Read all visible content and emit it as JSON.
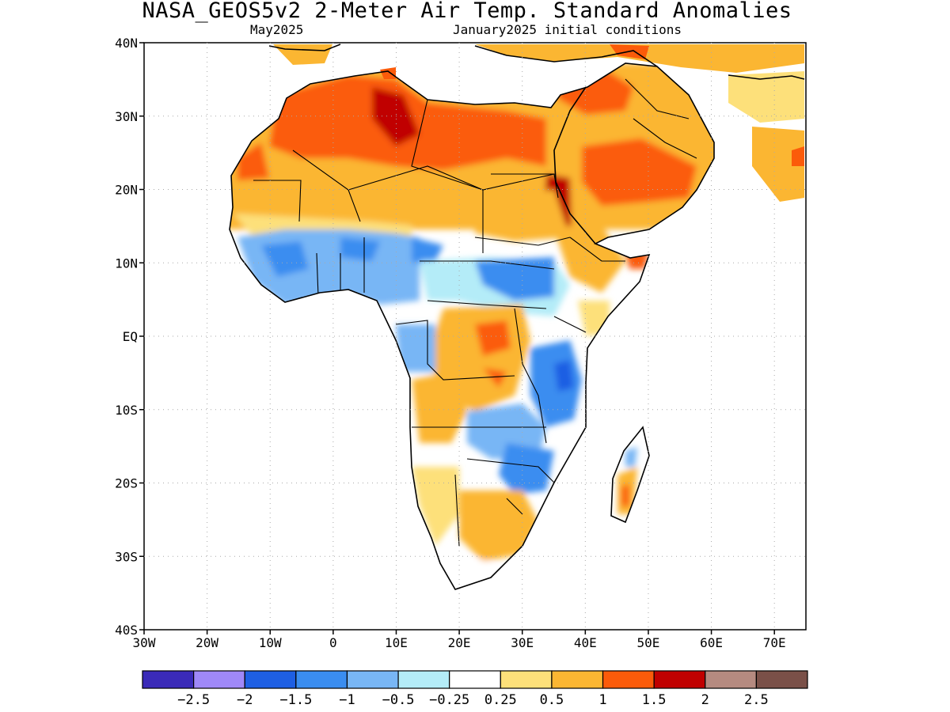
{
  "title": "NASA_GEOS5v2 2-Meter Air Temp. Standard Anomalies",
  "subtitle_left": "May2025",
  "subtitle_right": "January2025 initial conditions",
  "axes": {
    "lat_labels": [
      "40N",
      "30N",
      "20N",
      "10N",
      "EQ",
      "10S",
      "20S",
      "30S",
      "40S"
    ],
    "lon_labels": [
      "30W",
      "20W",
      "10W",
      "0",
      "10E",
      "20E",
      "30E",
      "40E",
      "50E",
      "60E",
      "70E"
    ]
  },
  "colorbar": {
    "colors": [
      "#3a2ab8",
      "#9f88f8",
      "#1e5fe3",
      "#3a8df0",
      "#78b6f5",
      "#b4ecf8",
      "#ffffff",
      "#fde07a",
      "#fbb632",
      "#fb5b0a",
      "#c00000",
      "#b58a80",
      "#7a5048"
    ],
    "labels": [
      "-2.5",
      "-2",
      "-1.5",
      "-1",
      "-0.5",
      "-0.25",
      "0.25",
      "0.5",
      "1",
      "1.5",
      "2",
      "2.5"
    ]
  }
}
